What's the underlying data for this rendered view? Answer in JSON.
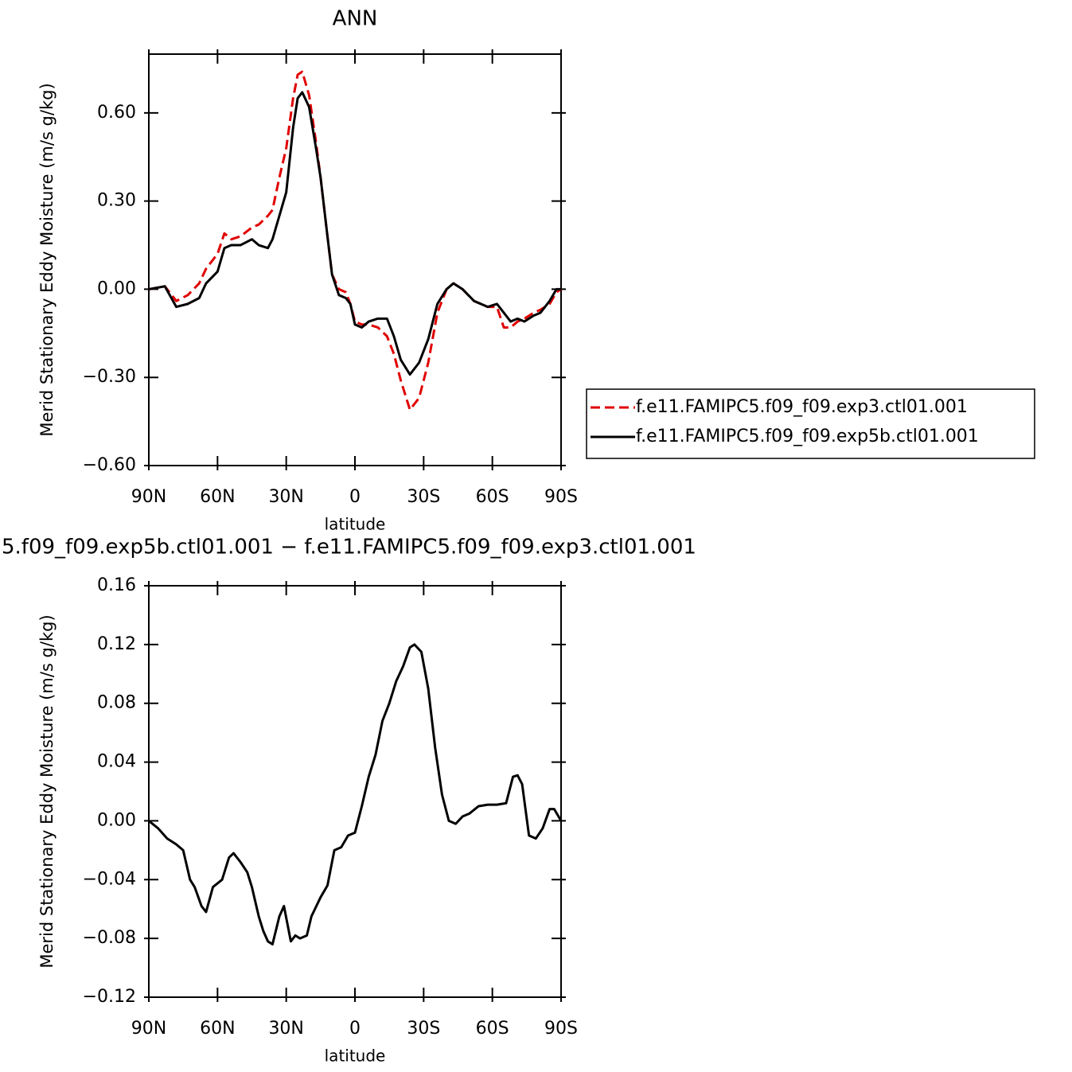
{
  "chart_data": [
    {
      "type": "line",
      "title": "ANN",
      "xlabel": "latitude",
      "ylabel": "Merid Stationary Eddy Moisture (m/s g/kg)",
      "x": [
        90,
        83,
        78,
        73,
        68,
        65,
        60,
        57,
        54,
        50,
        45,
        42,
        38,
        36,
        33,
        30,
        27,
        25,
        23,
        20,
        17,
        15,
        12,
        10,
        7,
        4,
        2,
        0,
        -3,
        -6,
        -10,
        -14,
        -17,
        -20,
        -24,
        -28,
        -32,
        -36,
        -40,
        -43,
        -47,
        -52,
        -58,
        -62,
        -65,
        -68,
        -71,
        -74,
        -78,
        -81,
        -85,
        -88,
        -90
      ],
      "series": [
        {
          "name": "f.e11.FAMIPC5.f09_f09.exp3.ctl01.001",
          "color": "#e00000",
          "linestyle": "dashed",
          "values": [
            0.0,
            0.01,
            -0.04,
            -0.02,
            0.02,
            0.07,
            0.12,
            0.19,
            0.17,
            0.18,
            0.21,
            0.22,
            0.25,
            0.27,
            0.38,
            0.48,
            0.65,
            0.73,
            0.74,
            0.66,
            0.5,
            0.38,
            0.18,
            0.05,
            0.0,
            -0.01,
            -0.05,
            -0.11,
            -0.12,
            -0.12,
            -0.13,
            -0.16,
            -0.22,
            -0.31,
            -0.41,
            -0.37,
            -0.25,
            -0.08,
            0.0,
            0.02,
            0.0,
            -0.04,
            -0.06,
            -0.06,
            -0.13,
            -0.13,
            -0.11,
            -0.1,
            -0.08,
            -0.07,
            -0.05,
            -0.01,
            0.0
          ]
        },
        {
          "name": "f.e11.FAMIPC5.f09_f09.exp5b.ctl01.001",
          "color": "#000000",
          "linestyle": "solid",
          "values": [
            0.0,
            0.01,
            -0.06,
            -0.05,
            -0.03,
            0.02,
            0.06,
            0.14,
            0.15,
            0.15,
            0.17,
            0.15,
            0.14,
            0.17,
            0.25,
            0.33,
            0.55,
            0.65,
            0.67,
            0.62,
            0.48,
            0.38,
            0.18,
            0.05,
            -0.02,
            -0.03,
            -0.05,
            -0.12,
            -0.13,
            -0.11,
            -0.1,
            -0.1,
            -0.16,
            -0.24,
            -0.29,
            -0.25,
            -0.17,
            -0.05,
            0.0,
            0.02,
            0.0,
            -0.04,
            -0.06,
            -0.05,
            -0.08,
            -0.11,
            -0.1,
            -0.11,
            -0.09,
            -0.08,
            -0.04,
            0.0,
            0.0
          ]
        }
      ],
      "xlim": [
        90,
        -90
      ],
      "xticks": [
        {
          "value": 90,
          "label": "90N"
        },
        {
          "value": 60,
          "label": "60N"
        },
        {
          "value": 30,
          "label": "30N"
        },
        0,
        {
          "value": -30,
          "label": "30S"
        },
        {
          "value": -60,
          "label": "60S"
        },
        {
          "value": -90,
          "label": "90S"
        }
      ],
      "ylim": [
        -0.6,
        0.8
      ],
      "yticks": [
        {
          "value": -0.6,
          "label": "−0.60"
        },
        {
          "value": -0.3,
          "label": "−0.30"
        },
        {
          "value": 0,
          "label": "0.00"
        },
        {
          "value": 0.3,
          "label": "0.30"
        },
        {
          "value": 0.6,
          "label": "0.60"
        }
      ],
      "legend": "right",
      "grid": false
    },
    {
      "type": "line",
      "title": "5.f09_f09.exp5b.ctl01.001 − f.e11.FAMIPC5.f09_f09.exp3.ctl01.001",
      "xlabel": "latitude",
      "ylabel": "Merid Stationary Eddy Moisture (m/s g/kg)",
      "x": [
        90,
        86,
        82,
        78,
        75,
        72,
        70,
        67,
        65,
        62,
        58,
        55,
        53,
        50,
        47,
        45,
        42,
        40,
        38,
        36,
        33,
        31,
        28,
        26,
        24,
        21,
        19,
        15,
        12,
        9,
        6,
        3,
        0,
        -3,
        -6,
        -9,
        -12,
        -15,
        -18,
        -21,
        -24,
        -26,
        -29,
        -32,
        -35,
        -38,
        -41,
        -44,
        -47,
        -50,
        -54,
        -58,
        -62,
        -66,
        -69,
        -71,
        -73,
        -76,
        -79,
        -82,
        -85,
        -87,
        -90
      ],
      "values": [
        0.0,
        -0.005,
        -0.012,
        -0.016,
        -0.02,
        -0.04,
        -0.045,
        -0.058,
        -0.062,
        -0.045,
        -0.04,
        -0.025,
        -0.022,
        -0.028,
        -0.035,
        -0.045,
        -0.065,
        -0.075,
        -0.082,
        -0.084,
        -0.065,
        -0.058,
        -0.082,
        -0.078,
        -0.08,
        -0.078,
        -0.065,
        -0.052,
        -0.044,
        -0.02,
        -0.018,
        -0.01,
        -0.008,
        0.01,
        0.03,
        0.045,
        0.068,
        0.08,
        0.095,
        0.105,
        0.118,
        0.12,
        0.115,
        0.09,
        0.05,
        0.018,
        0.0,
        -0.002,
        0.003,
        0.005,
        0.01,
        0.011,
        0.011,
        0.012,
        0.03,
        0.031,
        0.025,
        -0.01,
        -0.012,
        -0.005,
        0.008,
        0.008,
        0.0
      ],
      "color": "#000000",
      "linestyle": "solid",
      "xlim": [
        90,
        -90
      ],
      "xticks": [
        {
          "value": 90,
          "label": "90N"
        },
        {
          "value": 60,
          "label": "60N"
        },
        {
          "value": 30,
          "label": "30N"
        },
        0,
        {
          "value": -30,
          "label": "30S"
        },
        {
          "value": -60,
          "label": "60S"
        },
        {
          "value": -90,
          "label": "90S"
        }
      ],
      "ylim": [
        -0.12,
        0.16
      ],
      "yticks": [
        {
          "value": -0.12,
          "label": "−0.12"
        },
        {
          "value": -0.08,
          "label": "−0.08"
        },
        {
          "value": -0.04,
          "label": "−0.04"
        },
        {
          "value": 0,
          "label": "0.00"
        },
        {
          "value": 0.04,
          "label": "0.04"
        },
        {
          "value": 0.08,
          "label": "0.08"
        },
        {
          "value": 0.12,
          "label": "0.12"
        },
        {
          "value": 0.16,
          "label": "0.16"
        }
      ],
      "grid": false
    }
  ]
}
